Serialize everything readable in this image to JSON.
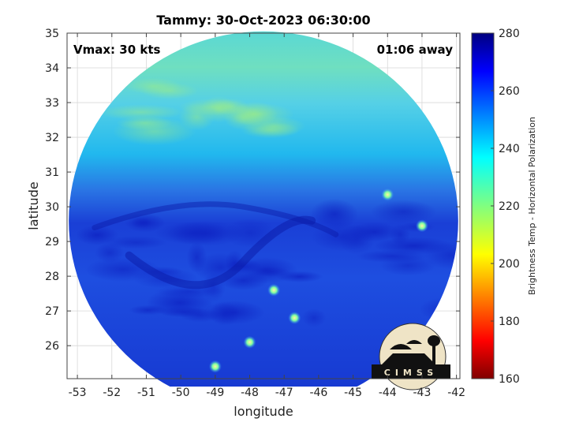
{
  "chart_data": {
    "type": "heatmap",
    "title": "Tammy: 30-Oct-2023 06:30:00",
    "xlabel": "longitude",
    "ylabel": "latitude",
    "xlim": [
      -53.3,
      -41.9
    ],
    "ylim": [
      25.05,
      35
    ],
    "xticks": [
      -53,
      -52,
      -51,
      -50,
      -49,
      -48,
      -47,
      -46,
      -45,
      -44,
      -43,
      -42
    ],
    "yticks": [
      26,
      27,
      28,
      29,
      30,
      31,
      32,
      33,
      34,
      35
    ],
    "grid": true,
    "annotations": {
      "vmax": "Vmax: 30 kts",
      "time_offset": "01:06 away"
    },
    "swath": {
      "shape": "circular scan",
      "center": [
        -47.6,
        29.6
      ],
      "radius_lon": 5.65,
      "radius_lat": 5.45
    },
    "features": [
      {
        "kind": "warm-dry band",
        "lat_range": [
          30.6,
          35
        ]
      },
      {
        "kind": "cold cloud band",
        "lat_range": [
          28.3,
          30.4
        ]
      },
      {
        "kind": "convective spot",
        "lon": -44.0,
        "lat": 30.35
      },
      {
        "kind": "convective spot",
        "lon": -43.0,
        "lat": 29.45
      },
      {
        "kind": "convective spot",
        "lon": -46.7,
        "lat": 26.8
      },
      {
        "kind": "convective spot",
        "lon": -47.3,
        "lat": 27.6
      },
      {
        "kind": "convective spot",
        "lon": -49.0,
        "lat": 25.4
      },
      {
        "kind": "convective spot",
        "lon": -48.0,
        "lat": 26.1
      }
    ],
    "colorbar": {
      "label": "Brightness Temp - Horizontal Polarization",
      "range": [
        160,
        280
      ],
      "ticks": [
        160,
        180,
        200,
        220,
        240,
        260,
        280
      ],
      "colormap": "jet-reversed"
    },
    "logo_text": "CIMSS"
  }
}
